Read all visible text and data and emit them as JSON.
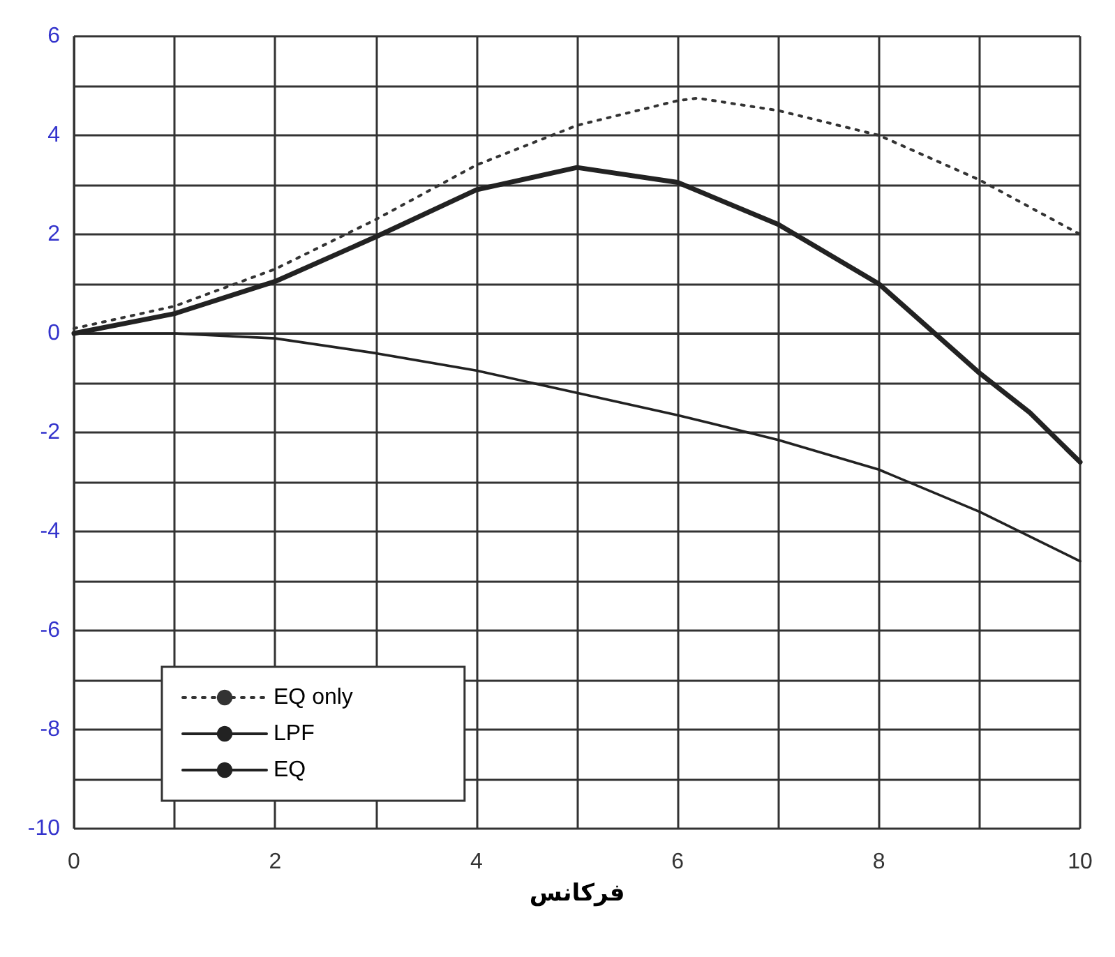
{
  "chart_data": {
    "type": "line",
    "xlabel": "فرکانس",
    "x": [
      0,
      1,
      2,
      3,
      4,
      5,
      6,
      6.2,
      7,
      8,
      9,
      10
    ],
    "series": [
      {
        "name": "EQ only",
        "color": "#333333",
        "line_style": "dotted",
        "values": [
          0.1,
          0.55,
          1.3,
          2.3,
          3.4,
          4.2,
          4.7,
          4.75,
          4.5,
          4.0,
          3.1,
          2.0
        ]
      },
      {
        "name": "LPF",
        "color": "#222222",
        "line_style": "solid",
        "values": [
          0,
          0,
          -0.1,
          -0.4,
          -0.75,
          -1.2,
          -1.65,
          -1.75,
          -2.15,
          -2.75,
          -3.6,
          -4.6
        ]
      },
      {
        "name": "EQ",
        "color": "#222222",
        "line_style": "solid",
        "x": [
          0,
          1,
          2,
          3,
          4,
          5,
          6,
          7,
          8,
          9,
          9.5,
          10
        ],
        "values": [
          0,
          0.4,
          1.05,
          1.95,
          2.9,
          3.35,
          3.05,
          2.2,
          1.0,
          -0.8,
          -1.6,
          -2.6
        ]
      }
    ],
    "xlim": [
      0,
      10
    ],
    "xticks": [
      0,
      {
        "value": 1,
        "label": null
      },
      2,
      {
        "value": 3,
        "label": null
      },
      4,
      {
        "value": 5,
        "label": null
      },
      6,
      {
        "value": 7,
        "label": null
      },
      8,
      {
        "value": 9,
        "label": null
      },
      10
    ],
    "ylim": [
      -10,
      6
    ],
    "yticks": [
      -10,
      {
        "value": -9,
        "label": null
      },
      -8,
      {
        "value": -7,
        "label": null
      },
      -6,
      {
        "value": -5,
        "label": null
      },
      -4,
      {
        "value": -3,
        "label": null
      },
      -2,
      {
        "value": -1,
        "label": null
      },
      0,
      {
        "value": 1,
        "label": null
      },
      2,
      {
        "value": 3,
        "label": null
      },
      4,
      {
        "value": 5,
        "label": null
      },
      6
    ],
    "grid": true,
    "legend": "bottom left",
    "marker": "none"
  }
}
